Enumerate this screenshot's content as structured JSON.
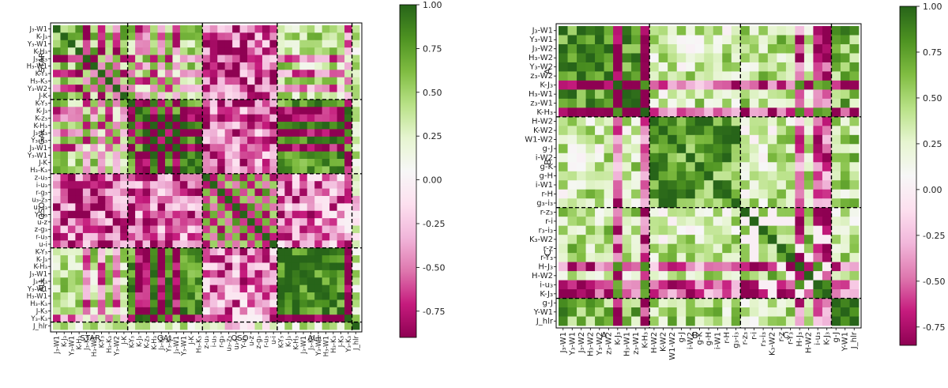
{
  "chart_data": [
    {
      "type": "heatmap",
      "title": "",
      "groups": [
        "STAR",
        "GAL",
        "QSO",
        "ALL"
      ],
      "row_labels": [
        "J₃-W1",
        "K-J₃",
        "Y₃-W1",
        "K-H₃",
        "J₃-K₃",
        "H₃-W1",
        "K-Y₃",
        "H₃-K₃",
        "Y₃-W2",
        "J-K",
        "K-Y₃",
        "K-J₃",
        "K-z₃",
        "K-H₃",
        "J₃-K₃",
        "Y₃-K₃",
        "J₃-W1",
        "Y₃-W1",
        "J-K",
        "H₃-K₃",
        "z-u₃",
        "i-u₃",
        "r-g₃",
        "u₃-z₃",
        "u₃-i₃",
        "Y-u₃",
        "u-z",
        "z-g₃",
        "r-u₃",
        "u-i",
        "K-Y₃",
        "K-J₃",
        "K-H₃",
        "J₃-W1",
        "J₃-K₃",
        "Y₃-W1",
        "H₃-W1",
        "H₃-K₃",
        "J-K₃",
        "Y₃-K₃",
        "J_hlr"
      ],
      "col_labels": [
        "J₃-W1",
        "K-J₃",
        "Y₃-W1",
        "K-H₃",
        "J₃-K₃",
        "H₃-W1",
        "K-Y₃",
        "H₃-K₃",
        "Y₃-W2",
        "J-K",
        "K-Y₃",
        "K-J₃",
        "K-z₃",
        "K-H₃",
        "J₃-K₃",
        "Y₃-K₃",
        "J₃-W1",
        "Y₃-W1",
        "J-K",
        "H₃-K₃",
        "z-u₃",
        "i-u₃",
        "r-g₃",
        "u₃-z₃",
        "u₃-i₃",
        "Y-u₃",
        "u-z",
        "z-g₃",
        "r-u₃",
        "u-i",
        "K-Y₃",
        "K-J₃",
        "K-H₃",
        "J₃-W1",
        "J₃-K₃",
        "Y₃-W1",
        "H₃-W1",
        "H₃-K₃",
        "J-K₃",
        "Y₃-K₃",
        "J_hlr"
      ],
      "group_sizes": [
        10,
        10,
        10,
        10,
        1
      ],
      "colorbar": {
        "min": -0.9,
        "max": 1.0,
        "ticks": [
          "1.00",
          "0.75",
          "0.50",
          "0.25",
          "0.00",
          "-0.25",
          "-0.50",
          "-0.75"
        ]
      },
      "cmap": "PiYG"
    },
    {
      "type": "heatmap",
      "title": "",
      "groups": [
        "A",
        "B",
        "C"
      ],
      "row_labels": [
        "J₃-W1",
        "Y₃-W1",
        "J₃-W2",
        "H₃-W2",
        "Y₃-W2",
        "z₃-W2",
        "K-J₃",
        "H₃-W1",
        "z₃-W1",
        "K-H₃",
        "H-W2",
        "K-W2",
        "W1-W2",
        "g-J",
        "i-W2",
        "g-K",
        "g-H",
        "i-W1",
        "r-H",
        "g₃-i₃",
        "r-z₃",
        "r-i",
        "r₃-i₃",
        "K₃-W2",
        "r-z",
        "r-Y₃",
        "H-J₃",
        "H-W2",
        "i-u₃",
        "K-J₃",
        "g-J",
        "Y-W1",
        "J_hlr"
      ],
      "col_labels": [
        "J₃-W1",
        "Y₃-W1",
        "J₃-W2",
        "H₃-W2",
        "Y₃-W2",
        "z₃-W2",
        "K-J₃",
        "H₃-W1",
        "z₃-W1",
        "K-H₃",
        "H-W2",
        "K-W2",
        "W1-W2",
        "g-J",
        "i-W2",
        "g-K",
        "g-H",
        "i-W1",
        "r-H",
        "g₃-i₃",
        "r-z₃",
        "r-i",
        "r₃-i₃",
        "K₃-W2",
        "r-z",
        "r-Y₃",
        "H-J₃",
        "H-W2",
        "i-u₃",
        "K-J₃",
        "g-J",
        "Y-W1",
        "J_hlr"
      ],
      "group_sizes": [
        10,
        10,
        10,
        3
      ],
      "colorbar": {
        "min": -0.85,
        "max": 1.0,
        "ticks": [
          "1.00",
          "0.75",
          "0.50",
          "0.25",
          "0.00",
          "-0.25",
          "-0.50",
          "-0.75"
        ]
      },
      "cmap": "PiYG"
    }
  ]
}
